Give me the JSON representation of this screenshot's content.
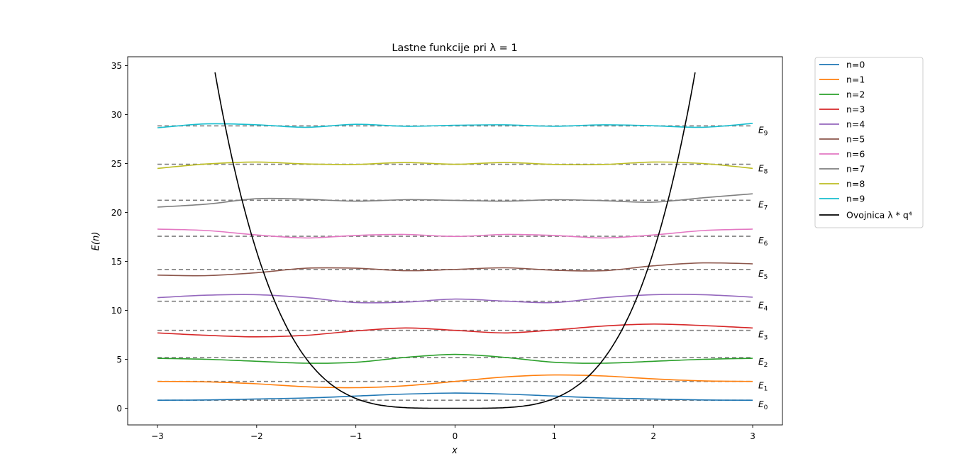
{
  "chart_data": {
    "type": "line",
    "title": "Lastne funkcije pri λ = 1",
    "xlabel": "x",
    "ylabel": "E(n)",
    "xlim": [
      -3.3,
      3.3
    ],
    "ylim": [
      -1.7,
      35.9
    ],
    "xticks": [
      -3,
      -2,
      -1,
      0,
      1,
      2,
      3
    ],
    "yticks": [
      0,
      5,
      10,
      15,
      20,
      25,
      30,
      35
    ],
    "xtick_labels": [
      "−3",
      "−2",
      "−1",
      "0",
      "1",
      "2",
      "3"
    ],
    "ytick_labels": [
      "0",
      "5",
      "10",
      "15",
      "20",
      "25",
      "30",
      "35"
    ],
    "grid": false,
    "legend_position": "outside-right-top",
    "energy_levels": [
      {
        "label": "E",
        "sub": "0",
        "value": 0.82
      },
      {
        "label": "E",
        "sub": "1",
        "value": 2.74
      },
      {
        "label": "E",
        "sub": "2",
        "value": 5.18
      },
      {
        "label": "E",
        "sub": "3",
        "value": 7.96
      },
      {
        "label": "E",
        "sub": "4",
        "value": 10.93
      },
      {
        "label": "E",
        "sub": "5",
        "value": 14.18
      },
      {
        "label": "E",
        "sub": "6",
        "value": 17.57
      },
      {
        "label": "E",
        "sub": "7",
        "value": 21.24
      },
      {
        "label": "E",
        "sub": "8",
        "value": 24.92
      },
      {
        "label": "E",
        "sub": "9",
        "value": 28.84
      }
    ],
    "series": [
      {
        "name": "n=0",
        "color": "#1f77b4",
        "x": [
          -3,
          -2.5,
          -2,
          -1.5,
          -1,
          -0.5,
          0,
          0.5,
          1,
          1.5,
          2,
          2.5,
          3
        ],
        "y": [
          0.82,
          0.85,
          0.95,
          1.05,
          1.25,
          1.45,
          1.55,
          1.45,
          1.25,
          1.05,
          0.95,
          0.85,
          0.82
        ]
      },
      {
        "name": "n=1",
        "color": "#ff7f0e",
        "x": [
          -3,
          -2.5,
          -2,
          -1.5,
          -1,
          -0.5,
          0,
          0.5,
          1,
          1.5,
          2,
          2.5,
          3
        ],
        "y": [
          2.74,
          2.7,
          2.5,
          2.2,
          2.1,
          2.3,
          2.74,
          3.2,
          3.4,
          3.3,
          3.0,
          2.8,
          2.74
        ]
      },
      {
        "name": "n=2",
        "color": "#2ca02c",
        "x": [
          -3,
          -2.5,
          -2,
          -1.5,
          -1,
          -0.5,
          0,
          0.5,
          1,
          1.5,
          2,
          2.5,
          3
        ],
        "y": [
          5.1,
          5.0,
          4.8,
          4.6,
          4.7,
          5.2,
          5.5,
          5.2,
          4.7,
          4.6,
          4.8,
          5.0,
          5.1
        ]
      },
      {
        "name": "n=3",
        "color": "#d62728",
        "x": [
          -3,
          -2.5,
          -2,
          -1.5,
          -1,
          -0.5,
          0,
          0.5,
          1,
          1.5,
          2,
          2.5,
          3
        ],
        "y": [
          7.7,
          7.45,
          7.3,
          7.45,
          7.9,
          8.2,
          7.96,
          7.7,
          8.0,
          8.4,
          8.6,
          8.45,
          8.2
        ]
      },
      {
        "name": "n=4",
        "color": "#9467bd",
        "x": [
          -3,
          -2.5,
          -2,
          -1.5,
          -1,
          -0.5,
          0,
          0.5,
          1,
          1.5,
          2,
          2.5,
          3
        ],
        "y": [
          11.3,
          11.55,
          11.6,
          11.3,
          10.8,
          10.85,
          11.15,
          10.95,
          10.8,
          11.3,
          11.6,
          11.6,
          11.35
        ]
      },
      {
        "name": "n=5",
        "color": "#8c564b",
        "x": [
          -3,
          -2.5,
          -2,
          -1.5,
          -1,
          -0.5,
          0,
          0.5,
          1,
          1.5,
          2,
          2.5,
          3
        ],
        "y": [
          13.6,
          13.55,
          13.85,
          14.3,
          14.3,
          14.05,
          14.18,
          14.35,
          14.1,
          14.05,
          14.55,
          14.85,
          14.75
        ]
      },
      {
        "name": "n=6",
        "color": "#e377c2",
        "x": [
          -3,
          -2.5,
          -2,
          -1.5,
          -1,
          -0.5,
          0,
          0.5,
          1,
          1.5,
          2,
          2.5,
          3
        ],
        "y": [
          18.3,
          18.15,
          17.7,
          17.4,
          17.65,
          17.75,
          17.55,
          17.75,
          17.65,
          17.4,
          17.7,
          18.15,
          18.3
        ]
      },
      {
        "name": "n=7",
        "color": "#7f7f7f",
        "x": [
          -3,
          -2.5,
          -2,
          -1.5,
          -1,
          -0.5,
          0,
          0.5,
          1,
          1.5,
          2,
          2.5,
          3
        ],
        "y": [
          20.55,
          20.85,
          21.4,
          21.35,
          21.15,
          21.3,
          21.24,
          21.15,
          21.3,
          21.2,
          21.05,
          21.5,
          21.9
        ]
      },
      {
        "name": "n=8",
        "color": "#bcbd22",
        "x": [
          -3,
          -2.5,
          -2,
          -1.5,
          -1,
          -0.5,
          0,
          0.5,
          1,
          1.5,
          2,
          2.5,
          3
        ],
        "y": [
          24.5,
          24.95,
          25.15,
          24.95,
          24.9,
          25.1,
          24.92,
          25.1,
          24.9,
          24.9,
          25.15,
          25.0,
          24.5
        ]
      },
      {
        "name": "n=9",
        "color": "#17becf",
        "x": [
          -3,
          -2.5,
          -2,
          -1.5,
          -1,
          -0.5,
          0,
          0.5,
          1,
          1.5,
          2,
          2.5,
          3
        ],
        "y": [
          28.65,
          29.05,
          28.95,
          28.7,
          29.0,
          28.8,
          28.9,
          28.95,
          28.8,
          28.95,
          28.85,
          28.7,
          29.1
        ]
      },
      {
        "name": "Ovojnica λ * q⁴",
        "color": "#000000",
        "function": "q^4",
        "x_range": [
          -2.42,
          2.42
        ]
      }
    ]
  }
}
